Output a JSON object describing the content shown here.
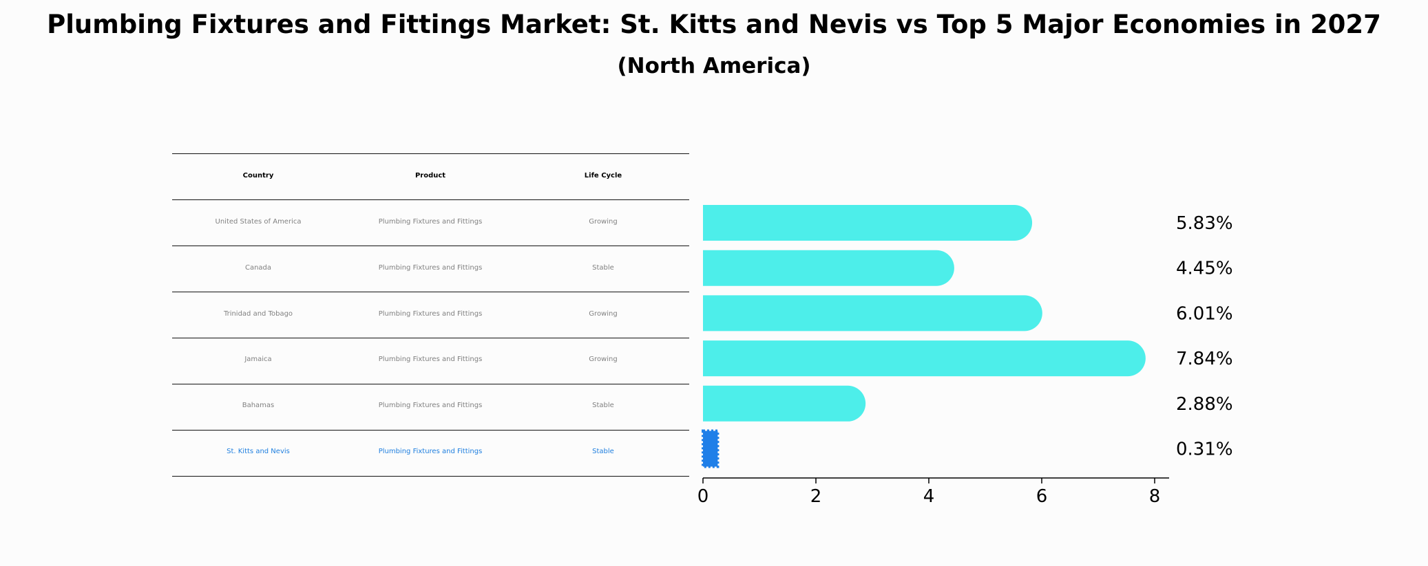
{
  "title": "Plumbing Fixtures and Fittings Market: St. Kitts and Nevis vs Top 5 Major Economies in 2027",
  "subtitle": "(North America)",
  "table": {
    "headers": [
      "Country",
      "Product",
      "Life Cycle"
    ],
    "rows": [
      [
        "United States of America",
        "Plumbing Fixtures and Fittings",
        "Growing"
      ],
      [
        "Canada",
        "Plumbing Fixtures and Fittings",
        "Stable"
      ],
      [
        "Trinidad and Tobago",
        "Plumbing Fixtures and Fittings",
        "Growing"
      ],
      [
        "Jamaica",
        "Plumbing Fixtures and Fittings",
        "Growing"
      ],
      [
        "Bahamas",
        "Plumbing Fixtures and Fittings",
        "Stable"
      ],
      [
        "St. Kitts and Nevis",
        "Plumbing Fixtures and Fittings",
        "Stable"
      ]
    ],
    "highlight_row": 5
  },
  "chart_data": {
    "type": "bar",
    "orientation": "horizontal",
    "categories": [
      "United States of America",
      "Canada",
      "Trinidad and Tobago",
      "Jamaica",
      "Bahamas",
      "St. Kitts and Nevis"
    ],
    "values": [
      5.83,
      4.45,
      6.01,
      7.84,
      2.88,
      0.31
    ],
    "value_labels": [
      "5.83%",
      "4.45%",
      "6.01%",
      "7.84%",
      "2.88%",
      "0.31%"
    ],
    "xlim": [
      0,
      8.2
    ],
    "xticks": [
      0,
      2,
      4,
      6,
      8
    ],
    "colors": {
      "default": "#4deeea",
      "highlight": "#1f7fe8"
    },
    "highlight_index": 5
  }
}
